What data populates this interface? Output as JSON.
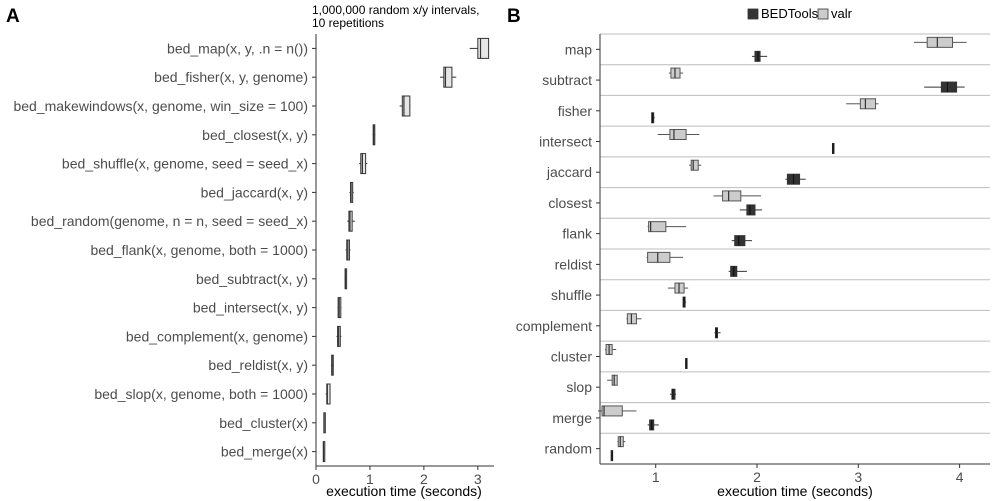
{
  "chart_data": [
    {
      "type": "boxplot",
      "panel": "A",
      "subtitle": [
        "1,000,000 random x/y intervals,",
        "10 repetitions"
      ],
      "xlabel": "execution time (seconds)",
      "ylabel": "",
      "xlim": [
        0,
        3.3
      ],
      "xticks": [
        0,
        1,
        2,
        3
      ],
      "grid": false,
      "box_color": "#e6e6e6",
      "categories": [
        "bed_map(x, y, .n = n())",
        "bed_fisher(x, y, genome)",
        "bed_makewindows(x, genome, win_size = 100)",
        "bed_closest(x, y)",
        "bed_shuffle(x, genome, seed = seed_x)",
        "bed_jaccard(x, y)",
        "bed_random(genome, n = n, seed = seed_x)",
        "bed_flank(x, genome, both = 1000)",
        "bed_subtract(x, y)",
        "bed_intersect(x, y)",
        "bed_complement(x, genome)",
        "bed_reldist(x, y)",
        "bed_slop(x, genome, both = 1000)",
        "bed_cluster(x)",
        "bed_merge(x)"
      ],
      "boxes": [
        {
          "min": 2.85,
          "q1": 3.0,
          "median": 3.05,
          "q3": 3.2,
          "max": 3.2
        },
        {
          "min": 2.3,
          "q1": 2.37,
          "median": 2.4,
          "q3": 2.52,
          "max": 2.6
        },
        {
          "min": 1.55,
          "q1": 1.6,
          "median": 1.63,
          "q3": 1.74,
          "max": 1.75
        },
        {
          "min": 1.05,
          "q1": 1.06,
          "median": 1.07,
          "q3": 1.09,
          "max": 1.1
        },
        {
          "min": 0.8,
          "q1": 0.83,
          "median": 0.86,
          "q3": 0.92,
          "max": 0.95
        },
        {
          "min": 0.62,
          "q1": 0.64,
          "median": 0.65,
          "q3": 0.68,
          "max": 0.7
        },
        {
          "min": 0.58,
          "q1": 0.61,
          "median": 0.63,
          "q3": 0.67,
          "max": 0.72
        },
        {
          "min": 0.55,
          "q1": 0.57,
          "median": 0.59,
          "q3": 0.62,
          "max": 0.64
        },
        {
          "min": 0.53,
          "q1": 0.54,
          "median": 0.545,
          "q3": 0.55,
          "max": 0.56
        },
        {
          "min": 0.4,
          "q1": 0.41,
          "median": 0.43,
          "q3": 0.46,
          "max": 0.47
        },
        {
          "min": 0.38,
          "q1": 0.4,
          "median": 0.42,
          "q3": 0.45,
          "max": 0.47
        },
        {
          "min": 0.28,
          "q1": 0.29,
          "median": 0.3,
          "q3": 0.32,
          "max": 0.33
        },
        {
          "min": 0.18,
          "q1": 0.2,
          "median": 0.21,
          "q3": 0.26,
          "max": 0.27
        },
        {
          "min": 0.14,
          "q1": 0.145,
          "median": 0.15,
          "q3": 0.155,
          "max": 0.16
        },
        {
          "min": 0.13,
          "q1": 0.135,
          "median": 0.14,
          "q3": 0.145,
          "max": 0.15
        }
      ]
    },
    {
      "type": "boxplot",
      "panel": "B",
      "xlabel": "execution time (seconds)",
      "ylabel": "",
      "xlim": [
        0.45,
        4.3
      ],
      "xticks": [
        1,
        2,
        3,
        4
      ],
      "grid": true,
      "legend_position": "top",
      "categories": [
        "map",
        "subtract",
        "fisher",
        "intersect",
        "jaccard",
        "closest",
        "flank",
        "reldist",
        "shuffle",
        "complement",
        "cluster",
        "slop",
        "merge",
        "random"
      ],
      "series": [
        {
          "name": "BEDTools",
          "color": "#333333",
          "boxes": [
            {
              "min": 1.95,
              "q1": 1.98,
              "median": 2.01,
              "q3": 2.03,
              "max": 2.1
            },
            {
              "min": 3.65,
              "q1": 3.82,
              "median": 3.88,
              "q3": 3.97,
              "max": 4.05
            },
            {
              "min": 0.96,
              "q1": 0.96,
              "median": 0.97,
              "q3": 0.98,
              "max": 0.99
            },
            {
              "min": 2.74,
              "q1": 2.745,
              "median": 2.75,
              "q3": 2.76,
              "max": 2.76
            },
            {
              "min": 2.28,
              "q1": 2.3,
              "median": 2.36,
              "q3": 2.42,
              "max": 2.48
            },
            {
              "min": 1.83,
              "q1": 1.9,
              "median": 1.93,
              "q3": 1.98,
              "max": 2.05
            },
            {
              "min": 1.75,
              "q1": 1.78,
              "median": 1.82,
              "q3": 1.88,
              "max": 1.95
            },
            {
              "min": 1.72,
              "q1": 1.74,
              "median": 1.77,
              "q3": 1.8,
              "max": 1.9
            },
            {
              "min": 1.27,
              "q1": 1.27,
              "median": 1.28,
              "q3": 1.29,
              "max": 1.3
            },
            {
              "min": 1.58,
              "q1": 1.59,
              "median": 1.6,
              "q3": 1.61,
              "max": 1.64
            },
            {
              "min": 1.29,
              "q1": 1.295,
              "median": 1.3,
              "q3": 1.305,
              "max": 1.31
            },
            {
              "min": 1.14,
              "q1": 1.16,
              "median": 1.17,
              "q3": 1.19,
              "max": 1.2
            },
            {
              "min": 0.92,
              "q1": 0.94,
              "median": 0.96,
              "q3": 0.98,
              "max": 1.03
            },
            {
              "min": 0.56,
              "q1": 0.56,
              "median": 0.57,
              "q3": 0.57,
              "max": 0.57
            }
          ]
        },
        {
          "name": "valr",
          "color": "#cccccc",
          "boxes": [
            {
              "min": 3.55,
              "q1": 3.68,
              "median": 3.78,
              "q3": 3.93,
              "max": 4.07
            },
            {
              "min": 1.13,
              "q1": 1.15,
              "median": 1.19,
              "q3": 1.24,
              "max": 1.27
            },
            {
              "min": 2.88,
              "q1": 3.02,
              "median": 3.07,
              "q3": 3.17,
              "max": 3.2
            },
            {
              "min": 1.02,
              "q1": 1.14,
              "median": 1.18,
              "q3": 1.3,
              "max": 1.43
            },
            {
              "min": 1.33,
              "q1": 1.35,
              "median": 1.37,
              "q3": 1.42,
              "max": 1.45
            },
            {
              "min": 1.57,
              "q1": 1.66,
              "median": 1.72,
              "q3": 1.84,
              "max": 2.04
            },
            {
              "min": 0.92,
              "q1": 0.93,
              "median": 0.95,
              "q3": 1.1,
              "max": 1.3
            },
            {
              "min": 0.91,
              "q1": 0.92,
              "median": 1.02,
              "q3": 1.14,
              "max": 1.27
            },
            {
              "min": 1.12,
              "q1": 1.19,
              "median": 1.23,
              "q3": 1.28,
              "max": 1.32
            },
            {
              "min": 0.71,
              "q1": 0.72,
              "median": 0.76,
              "q3": 0.81,
              "max": 0.86
            },
            {
              "min": 0.5,
              "q1": 0.51,
              "median": 0.54,
              "q3": 0.57,
              "max": 0.61
            },
            {
              "min": 0.52,
              "q1": 0.57,
              "median": 0.59,
              "q3": 0.62,
              "max": 0.62
            },
            {
              "min": 0.43,
              "q1": 0.47,
              "median": 0.49,
              "q3": 0.67,
              "max": 0.81
            },
            {
              "min": 0.62,
              "q1": 0.63,
              "median": 0.65,
              "q3": 0.68,
              "max": 0.7
            }
          ]
        }
      ]
    }
  ]
}
